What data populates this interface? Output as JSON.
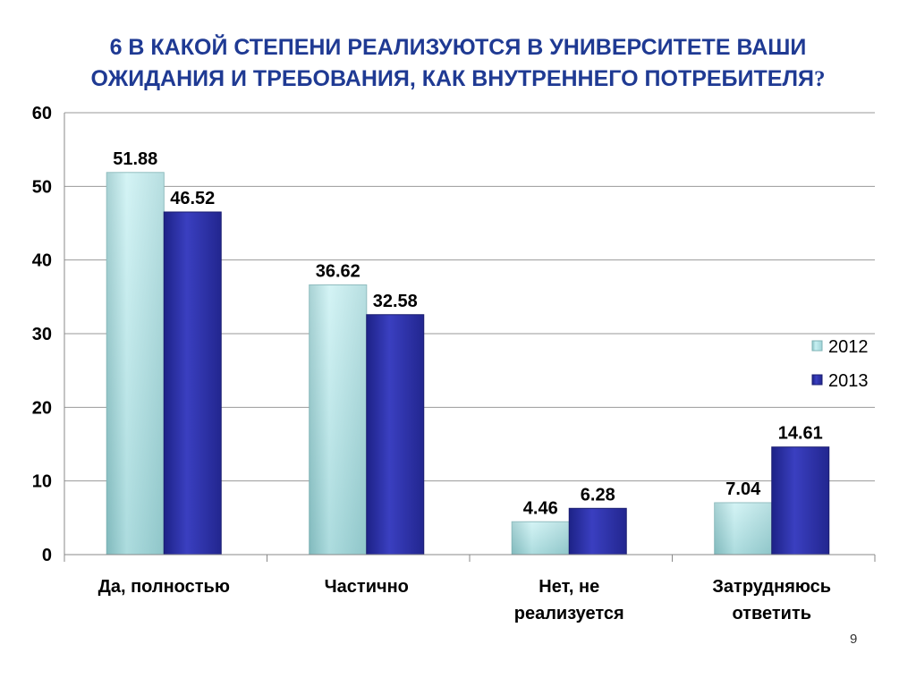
{
  "slide": {
    "title_line1": "6 В КАКОЙ СТЕПЕНИ РЕАЛИЗУЮТСЯ  В УНИВЕРСИТЕТЕ  ВАШИ",
    "title_line2": "ОЖИДАНИЯ И ТРЕБОВАНИЯ, КАК ВНУТРЕННЕГО ПОТРЕБИТЕЛЯ",
    "title_qmark": "?",
    "page_number": "9"
  },
  "chart_data": {
    "type": "bar",
    "categories": [
      [
        "Да, полностью"
      ],
      [
        "Частично"
      ],
      [
        "Нет, не",
        "реализуется"
      ],
      [
        "Затрудняюсь",
        "ответить"
      ]
    ],
    "series": [
      {
        "name": "2012",
        "values": [
          51.88,
          36.62,
          4.46,
          7.04
        ],
        "color": "#b8e6ea"
      },
      {
        "name": "2013",
        "values": [
          46.52,
          32.58,
          6.28,
          14.61
        ],
        "color": "#2b2fa0"
      }
    ],
    "data_labels": [
      [
        "51.88",
        "36.62",
        "4.46",
        "7.04"
      ],
      [
        "46.52",
        "32.58",
        "6.28",
        "14.61"
      ]
    ],
    "yticks": [
      "0",
      "10",
      "20",
      "30",
      "40",
      "50",
      "60"
    ],
    "ylim": [
      0,
      60
    ],
    "grid": true,
    "legend_position": "right",
    "title": "",
    "xlabel": "",
    "ylabel": ""
  },
  "colors": {
    "title": "#1f3a93",
    "gridline": "#9a9a9a"
  }
}
